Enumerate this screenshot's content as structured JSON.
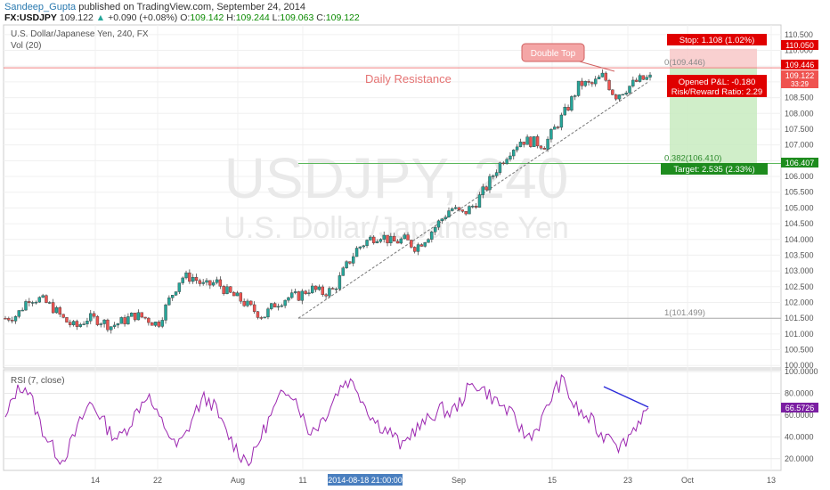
{
  "header": {
    "author": "Sandeep_Gupta",
    "published": "published on TradingView.com, September 24, 2014",
    "symbol": "FX:USDJPY",
    "last": "109.122",
    "change": "+0.090 (+0.08%)",
    "o_label": "O:",
    "o": "109.142",
    "h_label": "H:",
    "h": "109.244",
    "l_label": "L:",
    "l": "109.063",
    "c_label": "C:",
    "c": "109.122"
  },
  "chart_data": [
    {
      "type": "candlestick",
      "title": "U.S. Dollar/Japanese Yen, 240, FX",
      "subtitle": "Vol (20)",
      "watermark_symbol": "USDJPY, 240",
      "watermark_name": "U.S. Dollar/Japanese Yen",
      "ylim": [
        99.95,
        110.75
      ],
      "y_ticks": [
        "110.500",
        "110.000",
        "109.500",
        "109.000",
        "108.500",
        "108.000",
        "107.500",
        "107.000",
        "106.500",
        "106.000",
        "105.500",
        "105.000",
        "104.500",
        "104.000",
        "103.500",
        "103.000",
        "102.500",
        "102.000",
        "101.500",
        "101.000",
        "100.500",
        "100.000"
      ],
      "x_ticks": [
        "14",
        "22",
        "Aug",
        "11",
        "Sep",
        "15",
        "23",
        "Oct",
        "13"
      ],
      "x_cursor_label": "2014-08-18 21:00:00",
      "colors": {
        "up": "#26a69a",
        "down": "#ef5350",
        "accent": "#e00000",
        "fib": "#888888",
        "fib_green": "#2e8b2e"
      },
      "price_path": [
        [
          101.5,
          101.5
        ],
        [
          101.7,
          101.6
        ],
        [
          102.2,
          102.15
        ],
        [
          102.05,
          102.1
        ],
        [
          101.8,
          101.85
        ],
        [
          101.35,
          101.45
        ],
        [
          101.1,
          101.2
        ],
        [
          101.55,
          101.5
        ],
        [
          101.5,
          101.45
        ],
        [
          101.2,
          101.25
        ],
        [
          101.45,
          101.4
        ],
        [
          101.65,
          101.6
        ],
        [
          101.5,
          101.5
        ],
        [
          101.35,
          101.3
        ],
        [
          102.15,
          102.1
        ],
        [
          102.85,
          102.8
        ],
        [
          102.75,
          102.8
        ],
        [
          102.5,
          102.5
        ],
        [
          102.6,
          102.65
        ],
        [
          102.3,
          102.3
        ],
        [
          102.1,
          102.1
        ],
        [
          101.8,
          101.8
        ],
        [
          101.55,
          101.55
        ],
        [
          102.0,
          101.95
        ],
        [
          102.2,
          102.15
        ],
        [
          102.25,
          102.2
        ],
        [
          102.5,
          102.45
        ],
        [
          102.35,
          102.3
        ],
        [
          102.4,
          102.4
        ],
        [
          103.1,
          103.1
        ],
        [
          103.7,
          103.7
        ],
        [
          104.0,
          104.0
        ],
        [
          104.2,
          104.15
        ],
        [
          103.85,
          103.9
        ],
        [
          104.05,
          104.0
        ],
        [
          103.75,
          103.75
        ],
        [
          104.15,
          104.1
        ],
        [
          104.55,
          104.55
        ],
        [
          105.0,
          105.0
        ],
        [
          104.85,
          104.8
        ],
        [
          105.15,
          105.1
        ],
        [
          105.7,
          105.65
        ],
        [
          106.3,
          106.3
        ],
        [
          106.8,
          106.8
        ],
        [
          107.2,
          107.15
        ],
        [
          107.1,
          107.1
        ],
        [
          107.0,
          107.0
        ],
        [
          107.6,
          107.6
        ],
        [
          108.2,
          108.2
        ],
        [
          109.0,
          108.95
        ],
        [
          108.95,
          108.9
        ],
        [
          109.2,
          109.2
        ],
        [
          108.5,
          108.55
        ],
        [
          108.75,
          108.8
        ],
        [
          109.0,
          109.05
        ],
        [
          109.15,
          109.12
        ]
      ],
      "x_range_days": [
        0,
        90
      ],
      "annotations": {
        "resistance_label": "Daily Resistance",
        "resistance_value": "109.446",
        "double_top_label": "Double Top",
        "fib0_label": "0(109.446)",
        "fib382_label": "0.382(106.410)",
        "fib1_label": "1(101.499)",
        "stop_label": "Stop: 1.108 (1.02%)",
        "target_label": "Target: 2.535 (2.33%)",
        "pnl_label": "Opened P&L: -0.180",
        "rr_label": "Risk/Reward Ratio: 2.29",
        "stop_price": "110.050",
        "entry_price": "109.446",
        "current_price": "109.122",
        "countdown": "33:29",
        "target_price": "106.407",
        "fib0": 109.446,
        "fib382": 106.41,
        "fib1": 101.499,
        "stop": 110.05,
        "target": 106.407,
        "current": 109.122
      }
    },
    {
      "type": "line",
      "title": "RSI (7, close)",
      "ylim": [
        10,
        100
      ],
      "y_ticks": [
        "100.0000",
        "80.0000",
        "60.0000",
        "40.0000",
        "20.0000"
      ],
      "last_value_label": "66.5726",
      "last_value": 66.5726,
      "rsi_path": [
        55,
        80,
        88,
        70,
        45,
        30,
        18,
        35,
        55,
        72,
        60,
        45,
        38,
        50,
        65,
        80,
        60,
        48,
        30,
        40,
        62,
        75,
        70,
        50,
        35,
        22,
        18,
        40,
        58,
        75,
        85,
        70,
        45,
        50,
        62,
        80,
        92,
        88,
        70,
        55,
        48,
        42,
        30,
        45,
        50,
        58,
        66,
        62,
        70,
        85,
        88,
        80,
        72,
        65,
        55,
        40,
        45,
        60,
        82,
        92,
        70,
        60,
        55,
        40,
        45,
        30,
        42,
        55,
        66.57
      ],
      "trendline_color": "#2b2bd9",
      "line_color": "#9c27b0"
    }
  ]
}
